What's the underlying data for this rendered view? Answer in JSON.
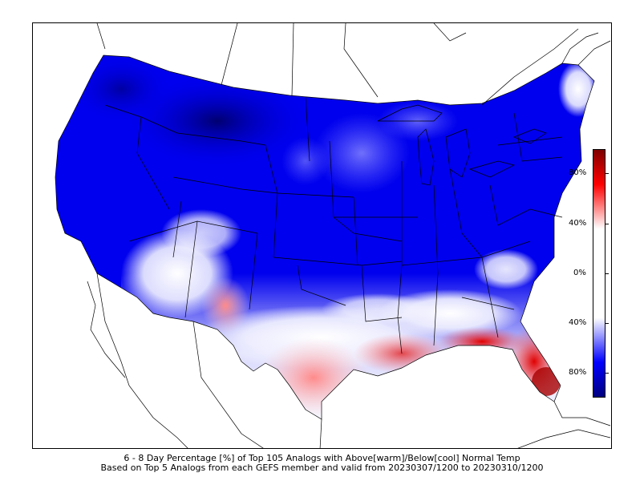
{
  "caption": {
    "line1": "6 - 8 Day Percentage [%] of Top 105 Analogs with Above[warm]/Below[cool] Normal Temp",
    "line2": "Based on Top 5 Analogs from each GEFS member and valid from 20230307/1200 to 20230310/1200"
  },
  "colorbar": {
    "ticks": [
      "80%",
      "40%",
      "0%",
      "40%",
      "80%"
    ],
    "colors": {
      "warm_max": "#800000",
      "warm": "#ff0000",
      "neutral": "#ffffff",
      "cool": "#0000ff",
      "cool_max": "#000080"
    }
  }
}
